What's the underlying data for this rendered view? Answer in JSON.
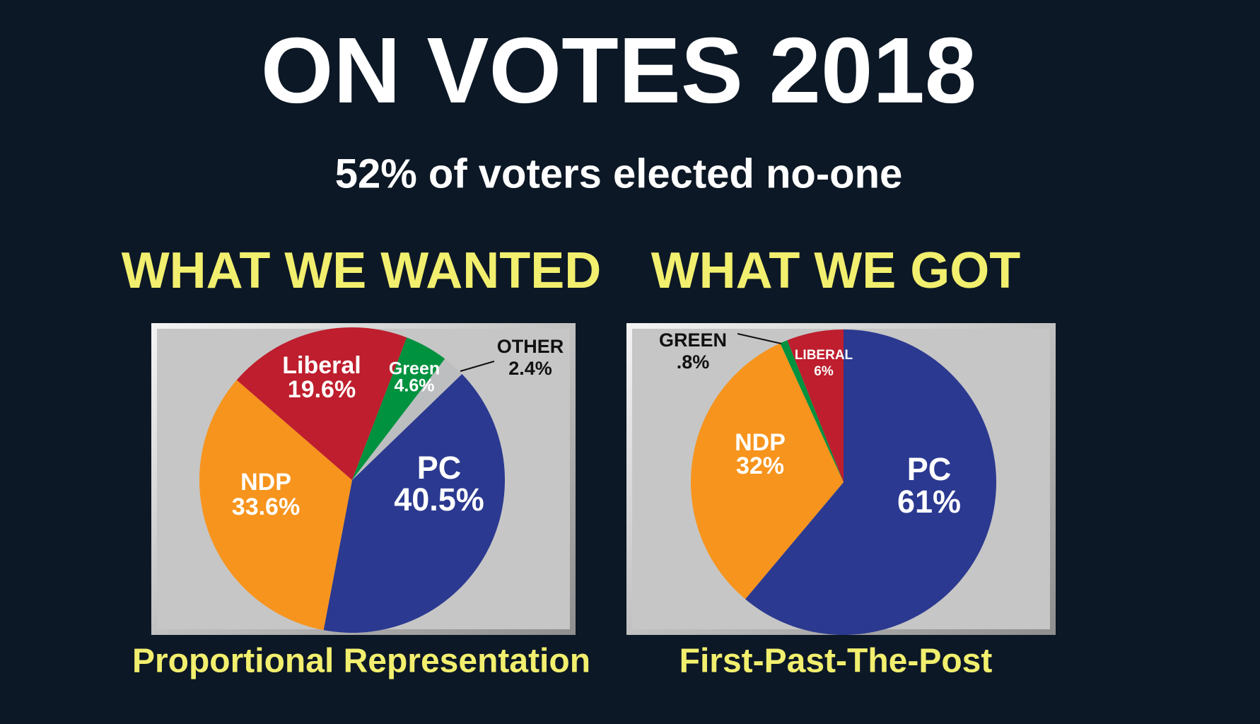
{
  "header": {
    "title": "ON VOTES 2018",
    "subtitle": "52% of  voters elected no-one"
  },
  "chart_data": [
    {
      "type": "pie",
      "title": "WHAT WE WANTED",
      "subtitle": "Proportional Representation",
      "categories": [
        "PC",
        "NDP",
        "Liberal",
        "Green",
        "OTHER"
      ],
      "values": [
        40.5,
        33.6,
        19.6,
        4.6,
        2.4
      ],
      "value_labels": [
        "40.5%",
        "33.6%",
        "19.6%",
        "4.6%",
        "2.4%"
      ],
      "colors": [
        "#2b3990",
        "#f7941d",
        "#be1e2d",
        "#00923f",
        "#bcbec0"
      ]
    },
    {
      "type": "pie",
      "title": "WHAT WE GOT",
      "subtitle": "First-Past-The-Post",
      "categories": [
        "PC",
        "NDP",
        "GREEN",
        "LIBERAL"
      ],
      "values": [
        61,
        32,
        0.8,
        6
      ],
      "value_labels": [
        "61%",
        "32%",
        ".8%",
        "6%"
      ],
      "colors": [
        "#2b3990",
        "#f7941d",
        "#00923f",
        "#be1e2d"
      ]
    }
  ]
}
